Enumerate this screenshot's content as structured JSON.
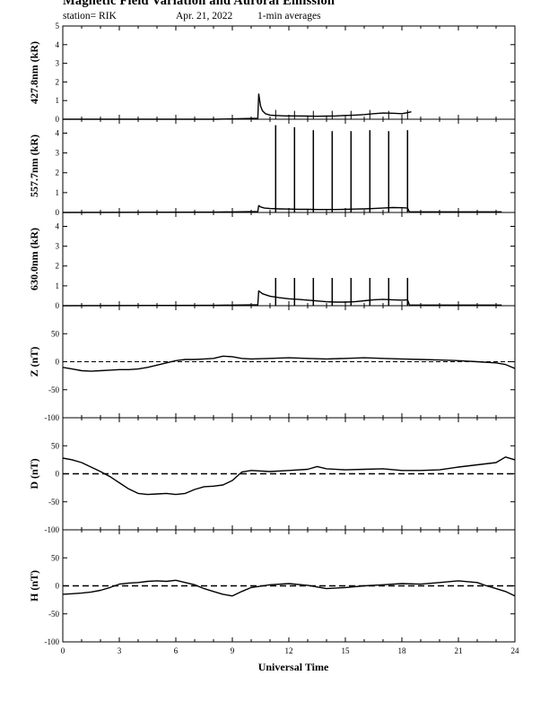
{
  "header": {
    "title": "Magnetic Field Variation and Auroral Emission",
    "station": "station= RIK",
    "date": "Apr. 21, 2022",
    "averaging": "1-min averages"
  },
  "chart_data": {
    "type": "line",
    "xlabel": "Universal Time",
    "xlim": [
      0,
      24
    ],
    "xticks": [
      0,
      3,
      6,
      9,
      12,
      15,
      18,
      21,
      24
    ],
    "panels": [
      {
        "id": "427",
        "ylabel": "427.8nm (kR)",
        "ylim": [
          0,
          5
        ],
        "yticks": [
          0,
          1,
          2,
          3,
          4,
          5
        ],
        "zero_line": false,
        "x": [
          0,
          8.1,
          10.35,
          10.4,
          10.5,
          10.6,
          10.75,
          11,
          11.3,
          11.8,
          12.3,
          13,
          13.5,
          14,
          14.5,
          15,
          15.5,
          16,
          16.5,
          17,
          17.5,
          18,
          18.3,
          18.5
        ],
        "y": [
          0,
          0,
          0.05,
          1.35,
          0.7,
          0.45,
          0.3,
          0.22,
          0.2,
          0.18,
          0.18,
          0.17,
          0.16,
          0.17,
          0.18,
          0.2,
          0.22,
          0.25,
          0.3,
          0.33,
          0.32,
          0.3,
          0.35,
          0.4
        ],
        "spikes": [
          {
            "x": 11.3,
            "y": 0.5
          },
          {
            "x": 12.3,
            "y": 0.45
          },
          {
            "x": 13.3,
            "y": 0.45
          },
          {
            "x": 14.3,
            "y": 0.45
          },
          {
            "x": 15.3,
            "y": 0.45
          },
          {
            "x": 16.3,
            "y": 0.5
          },
          {
            "x": 17.3,
            "y": 0.45
          },
          {
            "x": 18.3,
            "y": 0.5
          }
        ]
      },
      {
        "id": "557",
        "ylabel": "557.7nm (kR)",
        "ylim": [
          0,
          4.7
        ],
        "yticks": [
          0,
          1,
          2,
          3,
          4
        ],
        "zero_line": false,
        "x": [
          0,
          8.1,
          10.35,
          10.4,
          10.5,
          10.7,
          11,
          11.5,
          12,
          12.5,
          13,
          13.5,
          14,
          14.5,
          15,
          15.5,
          16,
          16.5,
          17,
          17.5,
          18,
          18.3,
          18.4,
          23.3
        ],
        "y": [
          0,
          0.02,
          0.05,
          0.35,
          0.28,
          0.22,
          0.2,
          0.18,
          0.17,
          0.16,
          0.16,
          0.15,
          0.15,
          0.15,
          0.16,
          0.17,
          0.18,
          0.2,
          0.22,
          0.25,
          0.24,
          0.22,
          0.03,
          0.03
        ],
        "spikes": [
          {
            "x": 11.3,
            "y": 4.4
          },
          {
            "x": 12.3,
            "y": 4.3
          },
          {
            "x": 13.3,
            "y": 4.15
          },
          {
            "x": 14.3,
            "y": 4.1
          },
          {
            "x": 15.3,
            "y": 4.1
          },
          {
            "x": 16.3,
            "y": 4.15
          },
          {
            "x": 17.3,
            "y": 4.1
          },
          {
            "x": 18.3,
            "y": 4.15
          }
        ]
      },
      {
        "id": "630",
        "ylabel": "630.0nm (kR)",
        "ylim": [
          0,
          4.7
        ],
        "yticks": [
          0,
          1,
          2,
          3,
          4
        ],
        "zero_line": false,
        "x": [
          0,
          8.1,
          10.35,
          10.4,
          10.6,
          11,
          11.5,
          12,
          12.5,
          13,
          13.5,
          14,
          14.5,
          15,
          15.5,
          16,
          16.5,
          17,
          17.5,
          18,
          18.3,
          18.4,
          23.3
        ],
        "y": [
          0,
          0.02,
          0.05,
          0.75,
          0.6,
          0.48,
          0.4,
          0.35,
          0.32,
          0.28,
          0.24,
          0.2,
          0.18,
          0.18,
          0.2,
          0.25,
          0.3,
          0.32,
          0.3,
          0.28,
          0.3,
          0.03,
          0.03
        ],
        "spikes": [
          {
            "x": 11.3,
            "y": 1.4
          },
          {
            "x": 12.3,
            "y": 1.4
          },
          {
            "x": 13.3,
            "y": 1.4
          },
          {
            "x": 14.3,
            "y": 1.4
          },
          {
            "x": 15.3,
            "y": 1.4
          },
          {
            "x": 16.3,
            "y": 1.4
          },
          {
            "x": 17.3,
            "y": 1.4
          },
          {
            "x": 18.3,
            "y": 1.4
          }
        ]
      },
      {
        "id": "Z",
        "ylabel": "Z (nT)",
        "ylim": [
          -100,
          100
        ],
        "yticks": [
          -100,
          -50,
          0,
          50
        ],
        "zero_line": true,
        "x": [
          0,
          0.5,
          1,
          1.5,
          2,
          2.5,
          3,
          3.5,
          4,
          4.5,
          5,
          5.5,
          6,
          6.5,
          7,
          7.5,
          8,
          8.5,
          9,
          9.5,
          10,
          11,
          12,
          13,
          14,
          15,
          16,
          17,
          18,
          19,
          20,
          21,
          22,
          23,
          23.5,
          24
        ],
        "y": [
          -10,
          -13,
          -16,
          -17,
          -16,
          -15,
          -14,
          -14,
          -13,
          -10,
          -6,
          -2,
          2,
          4,
          4,
          5,
          6,
          10,
          9,
          6,
          5,
          6,
          7,
          6,
          5,
          6,
          7,
          6,
          5,
          4,
          3,
          2,
          0,
          -2,
          -5,
          -12
        ]
      },
      {
        "id": "D",
        "ylabel": "D (nT)",
        "ylim": [
          -100,
          100
        ],
        "yticks": [
          -100,
          -50,
          0,
          50
        ],
        "zero_line": true,
        "x": [
          0,
          0.5,
          1,
          1.5,
          2,
          2.5,
          3,
          3.5,
          4,
          4.5,
          5,
          5.5,
          6,
          6.5,
          7,
          7.5,
          8,
          8.5,
          9,
          9.5,
          10,
          11,
          12,
          13,
          13.5,
          14,
          15,
          16,
          17,
          18,
          19,
          20,
          21,
          22,
          23,
          23.5,
          24
        ],
        "y": [
          28,
          25,
          20,
          12,
          4,
          -5,
          -16,
          -27,
          -35,
          -37,
          -36,
          -35,
          -37,
          -35,
          -28,
          -23,
          -22,
          -20,
          -12,
          3,
          6,
          4,
          6,
          8,
          13,
          9,
          7,
          8,
          9,
          6,
          6,
          7,
          12,
          16,
          20,
          30,
          25
        ]
      },
      {
        "id": "H",
        "ylabel": "H (nT)",
        "ylim": [
          -100,
          100
        ],
        "yticks": [
          -100,
          -50,
          0,
          50
        ],
        "zero_line": true,
        "x": [
          0,
          0.5,
          1,
          1.5,
          2,
          2.5,
          3,
          3.5,
          4,
          4.5,
          5,
          5.5,
          6,
          6.5,
          7,
          7.5,
          8,
          8.5,
          9,
          9.5,
          10,
          11,
          12,
          13,
          14,
          15,
          16,
          17,
          18,
          19,
          20,
          21,
          22,
          22.5,
          23,
          23.5,
          24
        ],
        "y": [
          -15,
          -14,
          -13,
          -11,
          -8,
          -3,
          3,
          5,
          6,
          8,
          9,
          8,
          10,
          6,
          2,
          -5,
          -10,
          -15,
          -18,
          -10,
          -3,
          2,
          4,
          1,
          -5,
          -3,
          0,
          2,
          4,
          3,
          6,
          9,
          6,
          0,
          -5,
          -10,
          -18
        ]
      }
    ]
  }
}
